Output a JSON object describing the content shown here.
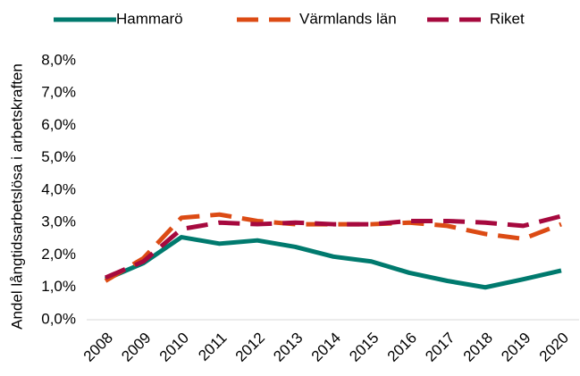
{
  "chart_data": {
    "type": "line",
    "y_label": "Andel långtidsarbetslösa i arbetskraften",
    "categories": [
      "2008",
      "2009",
      "2010",
      "2011",
      "2012",
      "2013",
      "2014",
      "2015",
      "2016",
      "2017",
      "2018",
      "2019",
      "2020"
    ],
    "series": [
      {
        "name": "Hammarö",
        "color": "#007a6e",
        "dashed": false,
        "values": [
          1.25,
          1.75,
          2.55,
          2.35,
          2.45,
          2.25,
          1.95,
          1.8,
          1.45,
          1.2,
          1.0,
          1.25,
          1.52
        ]
      },
      {
        "name": "Värmlands län",
        "color": "#dc4b14",
        "dashed": true,
        "values": [
          1.2,
          1.9,
          3.15,
          3.25,
          3.05,
          2.95,
          2.95,
          2.95,
          3.0,
          2.9,
          2.65,
          2.5,
          2.95
        ]
      },
      {
        "name": "Riket",
        "color": "#a6093e",
        "dashed": true,
        "values": [
          1.3,
          1.8,
          2.8,
          3.0,
          2.95,
          3.0,
          2.95,
          2.95,
          3.05,
          3.05,
          3.0,
          2.9,
          3.2
        ]
      }
    ],
    "ylim": [
      0,
      8
    ],
    "yticks": [
      {
        "value": 0,
        "label": "0,0%"
      },
      {
        "value": 1,
        "label": "1,0%"
      },
      {
        "value": 2,
        "label": "2,0%"
      },
      {
        "value": 3,
        "label": "3,0%"
      },
      {
        "value": 4,
        "label": "4,0%"
      },
      {
        "value": 5,
        "label": "5,0%"
      },
      {
        "value": 6,
        "label": "6,0%"
      },
      {
        "value": 7,
        "label": "7,0%"
      },
      {
        "value": 8,
        "label": "8,0%"
      }
    ],
    "grid": false,
    "legend": "top"
  }
}
